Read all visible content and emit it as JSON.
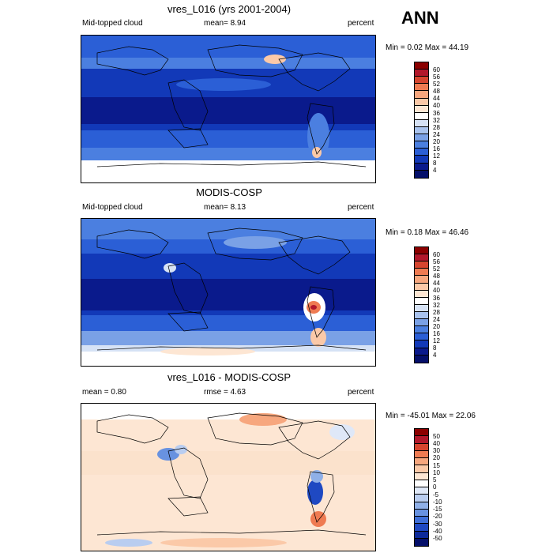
{
  "season": "ANN",
  "panels": [
    {
      "title": "vres_L016 (yrs 2001-2004)",
      "left_label": "Mid-topped cloud",
      "center_label": "mean=   8.94",
      "right_label": "percent",
      "range_text": "Min =   0.02 Max =  44.19",
      "colorbar_labels": [
        "60",
        "56",
        "52",
        "48",
        "44",
        "40",
        "36",
        "32",
        "28",
        "24",
        "20",
        "16",
        "12",
        "8",
        "4"
      ]
    },
    {
      "title": "MODIS-COSP",
      "left_label": "Mid-topped cloud",
      "center_label": "mean=   8.13",
      "right_label": "percent",
      "range_text": "Min =   0.18 Max =  46.46",
      "colorbar_labels": [
        "60",
        "56",
        "52",
        "48",
        "44",
        "40",
        "36",
        "32",
        "28",
        "24",
        "20",
        "16",
        "12",
        "8",
        "4"
      ]
    },
    {
      "title": "vres_L016 - MODIS-COSP",
      "left_label": "mean =   0.80",
      "center_label": "rmse =   4.63",
      "right_label": "percent",
      "range_text": "Min = -45.01 Max =  22.06",
      "colorbar_labels": [
        "50",
        "40",
        "30",
        "20",
        "15",
        "10",
        "5",
        "0",
        "-5",
        "-10",
        "-15",
        "-20",
        "-30",
        "-40",
        "-50"
      ]
    }
  ],
  "colors": {
    "abs_scale": [
      "#8b0000",
      "#b2182b",
      "#d6452f",
      "#ef7b52",
      "#f7a77e",
      "#fbc9a8",
      "#fde6d3",
      "#ffffff",
      "#d6e2f5",
      "#a9c3ee",
      "#7aa1e6",
      "#4b7fe0",
      "#2b5fd6",
      "#1239b8",
      "#0a1a8c",
      "#05106a"
    ],
    "diff_scale": [
      "#8b0000",
      "#b2182b",
      "#d6452f",
      "#ef7b52",
      "#f7a77e",
      "#fbc9a8",
      "#fde6d3",
      "#ffffff",
      "#dfe8f8",
      "#b9cdf0",
      "#8fb0e8",
      "#6892e0",
      "#3f6fd8",
      "#1f49c2",
      "#0d2a9a",
      "#05106a"
    ]
  }
}
